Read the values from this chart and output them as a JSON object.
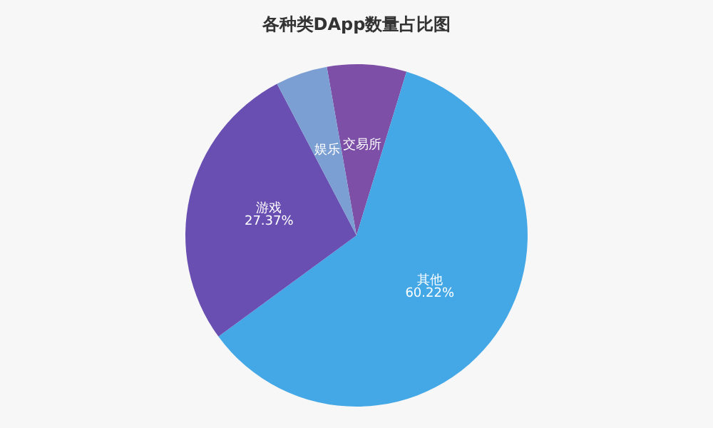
{
  "chart_data": {
    "type": "pie",
    "title": "各种类DApp数量占比图",
    "categories": [
      "交易所",
      "其他",
      "游戏",
      "娱乐"
    ],
    "values": [
      7.5,
      60.22,
      27.37,
      4.91
    ],
    "colors": [
      "#7d4fa6",
      "#45a8e6",
      "#6a4fb2",
      "#7b9fd2"
    ],
    "value_labels": [
      null,
      "60.22%",
      "27.37%",
      null
    ],
    "legend": false
  }
}
